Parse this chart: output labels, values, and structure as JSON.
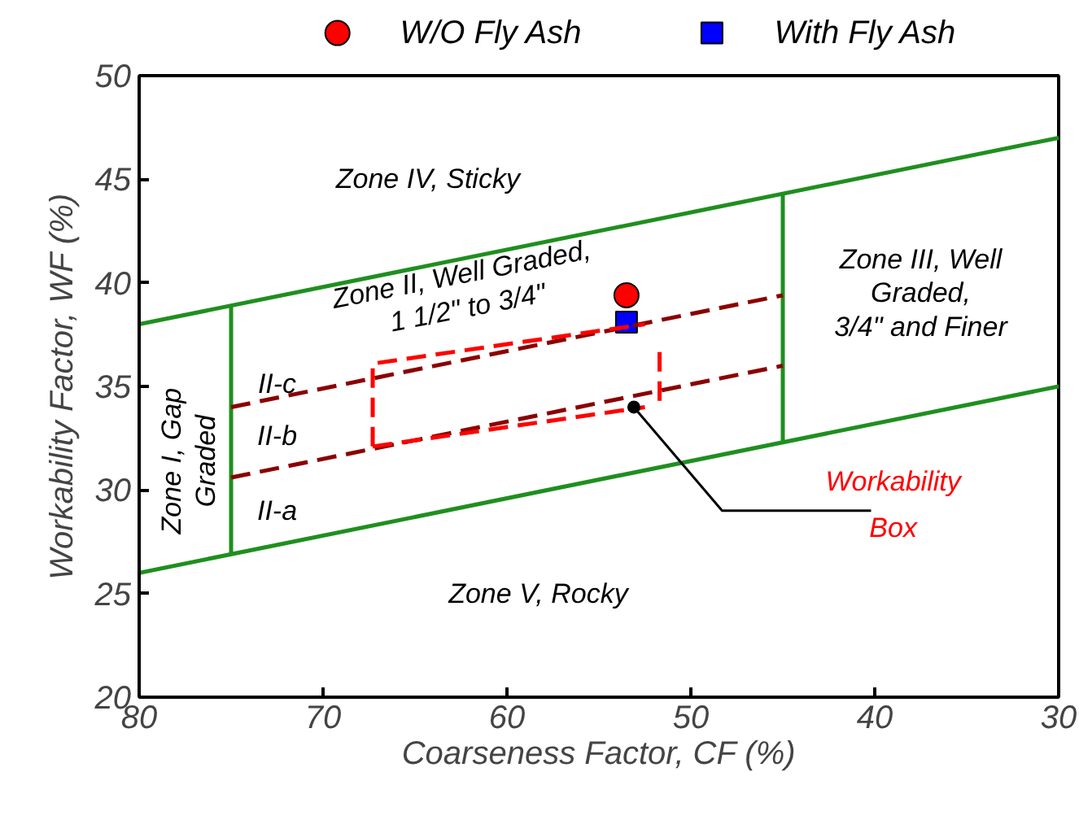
{
  "chart_data": {
    "type": "scatter",
    "xlabel": "Coarseness Factor, CF (%)",
    "ylabel": "Workability Factor, WF (%)",
    "xlim": [
      80,
      30
    ],
    "xticks": [
      80,
      70,
      60,
      50,
      40,
      30
    ],
    "ylim": [
      20,
      50
    ],
    "yticks": [
      20,
      25,
      30,
      35,
      40,
      45,
      50
    ],
    "grid": false,
    "legend": "top",
    "series": [
      {
        "name": "W/O Fly Ash",
        "type": "scatter",
        "marker": "circle",
        "color": "#ff0000",
        "x": [
          53.5
        ],
        "values": [
          39.4
        ]
      },
      {
        "name": "With Fly Ash",
        "type": "scatter",
        "marker": "square",
        "color": "#0000ff",
        "x": [
          53.5
        ],
        "values": [
          38.1
        ]
      },
      {
        "type": "line",
        "color": "#1f8f1f",
        "line_style": "solid",
        "x": [
          80,
          30
        ],
        "values": [
          38,
          47
        ]
      },
      {
        "type": "line",
        "color": "#1f8f1f",
        "line_style": "solid",
        "x": [
          80,
          30
        ],
        "values": [
          26,
          35
        ]
      },
      {
        "type": "line",
        "color": "#1f8f1f",
        "line_style": "solid",
        "x": [
          75,
          75
        ],
        "values": [
          26.9,
          38.9
        ]
      },
      {
        "type": "line",
        "color": "#1f8f1f",
        "line_style": "solid",
        "x": [
          45,
          45
        ],
        "values": [
          32.3,
          44.3
        ]
      },
      {
        "type": "line",
        "color": "#8b0000",
        "line_style": "dashed",
        "x": [
          75,
          45
        ],
        "values": [
          34,
          39.4
        ]
      },
      {
        "type": "line",
        "color": "#8b0000",
        "line_style": "dashed",
        "x": [
          75,
          45
        ],
        "values": [
          30.6,
          36
        ]
      },
      {
        "type": "line",
        "color": "#ff0000",
        "line_style": "dashed",
        "x": [
          67.3,
          67.3,
          52.5
        ],
        "values": [
          32.1,
          36.1,
          38.0
        ]
      },
      {
        "type": "line",
        "color": "#ff0000",
        "line_style": "dashed",
        "x": [
          67.3,
          52.5
        ],
        "values": [
          32.1,
          34.0
        ]
      },
      {
        "type": "line",
        "color": "#ff0000",
        "line_style": "dashed",
        "x": [
          51.7,
          51.7
        ],
        "values": [
          34.3,
          36.7
        ]
      }
    ],
    "annotations": [
      "Zone IV, Sticky",
      "Zone II, Well Graded,\n1 1/2\" to 3/4\"",
      "Zone III, Well\nGraded,\n3/4\" and Finer",
      "Zone I, Gap\nGraded",
      "II-c",
      "II-b",
      "II-a",
      "Zone V, Rocky",
      {
        "text": "Workability\nBox",
        "x": 53.1,
        "y": 34.0
      }
    ]
  }
}
